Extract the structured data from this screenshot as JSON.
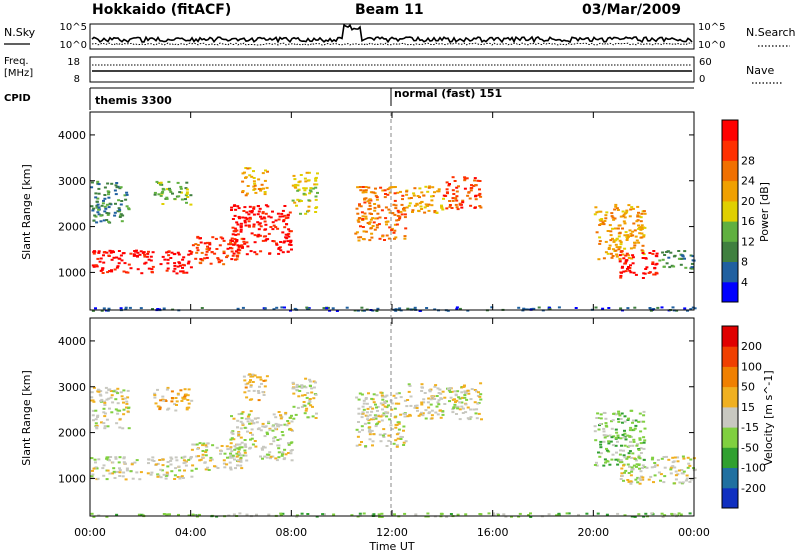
{
  "header": {
    "station": "Hokkaido (fitACF)",
    "beam": "Beam 11",
    "date": "03/Mar/2009"
  },
  "noise_panel": {
    "left_label": "N.Sky",
    "right_label": "N.Search",
    "y_ticks": [
      "10^5",
      "10^0"
    ]
  },
  "freq_panel": {
    "left_label_line1": "Freq.",
    "left_label_line2": "[MHz]",
    "left_ticks": [
      "18",
      "8"
    ],
    "right_label": "Nave",
    "right_ticks": [
      "60",
      "0"
    ]
  },
  "cpid": {
    "label": "CPID",
    "segments": [
      "themis 3300",
      "normal (fast) 151"
    ]
  },
  "time_axis": {
    "ticks": [
      "00:00",
      "04:00",
      "08:00",
      "12:00",
      "16:00",
      "20:00",
      "00:00"
    ],
    "label": "Time UT"
  },
  "colors": {
    "power": [
      "#0000ff",
      "#2060a0",
      "#408040",
      "#60b040",
      "#e0d000",
      "#f0a000",
      "#f07000",
      "#ff3000",
      "#ff0000"
    ],
    "velocity": [
      "#1030c0",
      "#2070a0",
      "#30a030",
      "#80d040",
      "#c8c8c0",
      "#f0b020",
      "#f08000",
      "#f04000",
      "#e00000"
    ],
    "ground_scatter": "#c0c0b8",
    "line": "#000000"
  },
  "chart_data": [
    {
      "type": "heatmap",
      "name": "power",
      "ylabel": "Slant Range [km]",
      "xlabel": "",
      "x_range_hours": [
        0,
        24
      ],
      "ylim": [
        180,
        4500
      ],
      "y_ticks": [
        1000,
        2000,
        3000,
        4000
      ],
      "colorbar": {
        "label": "Power [dB]",
        "ticks": [
          "4",
          "8",
          "12",
          "16",
          "20",
          "24",
          "28"
        ]
      },
      "regions": [
        {
          "t_start": 0.0,
          "t_end": 4.0,
          "r_low": 1000,
          "r_high": 1500,
          "level": 8
        },
        {
          "t_start": 0.0,
          "t_end": 1.5,
          "r_low": 2100,
          "r_high": 3000,
          "level": 2
        },
        {
          "t_start": 2.5,
          "t_end": 4.0,
          "r_low": 2500,
          "r_high": 3000,
          "level": 3
        },
        {
          "t_start": 4.0,
          "t_end": 6.0,
          "r_low": 1200,
          "r_high": 1800,
          "level": 7
        },
        {
          "t_start": 5.5,
          "t_end": 8.0,
          "r_low": 1400,
          "r_high": 2500,
          "level": 8
        },
        {
          "t_start": 6.0,
          "t_end": 7.0,
          "r_low": 2700,
          "r_high": 3300,
          "level": 5
        },
        {
          "t_start": 8.0,
          "t_end": 9.0,
          "r_low": 2300,
          "r_high": 3200,
          "level": 4
        },
        {
          "t_start": 10.5,
          "t_end": 12.5,
          "r_low": 1700,
          "r_high": 2900,
          "level": 6
        },
        {
          "t_start": 12.5,
          "t_end": 14.0,
          "r_low": 2300,
          "r_high": 2900,
          "level": 5
        },
        {
          "t_start": 14.0,
          "t_end": 15.5,
          "r_low": 2400,
          "r_high": 3100,
          "level": 7
        },
        {
          "t_start": 20.0,
          "t_end": 22.0,
          "r_low": 1300,
          "r_high": 2500,
          "level": 5
        },
        {
          "t_start": 21.0,
          "t_end": 22.5,
          "r_low": 900,
          "r_high": 1500,
          "level": 8
        },
        {
          "t_start": 22.5,
          "t_end": 24.0,
          "r_low": 1100,
          "r_high": 1500,
          "level": 2
        },
        {
          "t_start": 0.0,
          "t_end": 24.0,
          "r_low": 180,
          "r_high": 260,
          "level": 1
        }
      ]
    },
    {
      "type": "heatmap",
      "name": "velocity",
      "ylabel": "Slant Range [km]",
      "xlabel": "Time UT",
      "x_range_hours": [
        0,
        24
      ],
      "ylim": [
        180,
        4500
      ],
      "y_ticks": [
        1000,
        2000,
        3000,
        4000
      ],
      "colorbar": {
        "label": "Velocity [m s^-1]",
        "ticks": [
          "200",
          "100",
          "50",
          "15",
          "-15",
          "-50",
          "-100",
          "-200"
        ]
      },
      "regions": [
        {
          "t_start": 0.0,
          "t_end": 4.0,
          "r_low": 1000,
          "r_high": 1500,
          "level": 4
        },
        {
          "t_start": 0.0,
          "t_end": 1.5,
          "r_low": 2100,
          "r_high": 3000,
          "level": 4
        },
        {
          "t_start": 2.5,
          "t_end": 4.0,
          "r_low": 2500,
          "r_high": 3000,
          "level": 5
        },
        {
          "t_start": 4.0,
          "t_end": 6.0,
          "r_low": 1200,
          "r_high": 1800,
          "level": 4
        },
        {
          "t_start": 5.5,
          "t_end": 8.0,
          "r_low": 1400,
          "r_high": 2500,
          "level": 4
        },
        {
          "t_start": 6.0,
          "t_end": 7.0,
          "r_low": 2700,
          "r_high": 3300,
          "level": 5
        },
        {
          "t_start": 8.0,
          "t_end": 9.0,
          "r_low": 2300,
          "r_high": 3200,
          "level": 4
        },
        {
          "t_start": 10.5,
          "t_end": 12.5,
          "r_low": 1700,
          "r_high": 2900,
          "level": 4
        },
        {
          "t_start": 12.5,
          "t_end": 15.5,
          "r_low": 2300,
          "r_high": 3100,
          "level": 4
        },
        {
          "t_start": 20.0,
          "t_end": 22.0,
          "r_low": 1300,
          "r_high": 2500,
          "level": 3
        },
        {
          "t_start": 21.0,
          "t_end": 24.0,
          "r_low": 900,
          "r_high": 1500,
          "level": 4
        },
        {
          "t_start": 0.0,
          "t_end": 24.0,
          "r_low": 180,
          "r_high": 260,
          "level": 3
        }
      ]
    }
  ]
}
